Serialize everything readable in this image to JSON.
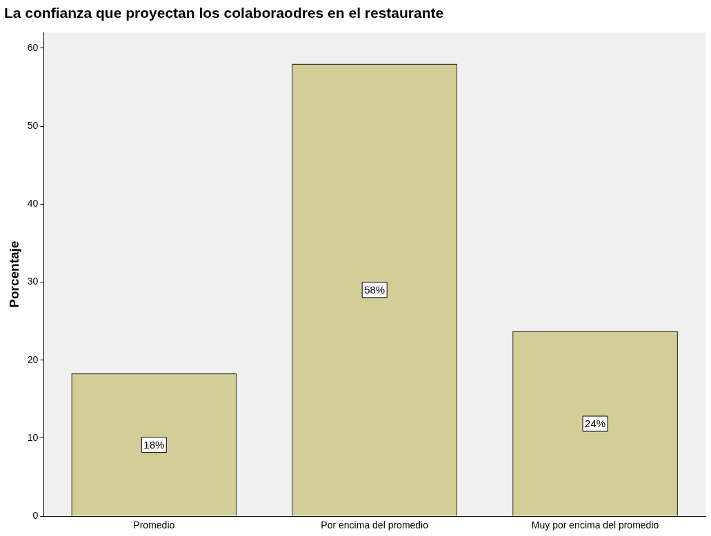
{
  "chart_data": {
    "type": "bar",
    "title": "La confianza que proyectan los colaboraodres en el restaurante",
    "ylabel": "Porcentaje",
    "categories": [
      "Promedio",
      "Por encima del promedio",
      "Muy por encima del promedio"
    ],
    "values": [
      18.3,
      58,
      23.7
    ],
    "color": "#d3ce97",
    "value_labels": [
      "18%",
      "58%",
      "24%"
    ],
    "ylim": [
      0,
      62
    ],
    "yticks": [
      0,
      10,
      20,
      30,
      40,
      50,
      60
    ],
    "grid": false,
    "legend": false
  }
}
